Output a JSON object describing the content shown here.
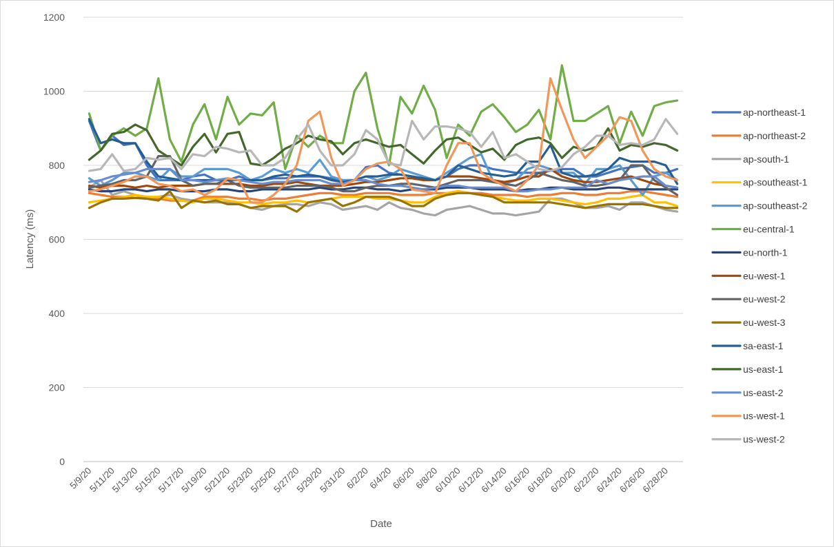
{
  "chart_data": {
    "type": "line",
    "title": "",
    "xlabel": "Date",
    "ylabel": "Latency (ms)",
    "ylim": [
      0,
      1200
    ],
    "y_ticks": [
      0,
      200,
      400,
      600,
      800,
      1000,
      1200
    ],
    "grid": "horizontal",
    "legend_position": "right",
    "x": [
      "5/9/20",
      "5/10/20",
      "5/11/20",
      "5/12/20",
      "5/13/20",
      "5/14/20",
      "5/15/20",
      "5/16/20",
      "5/17/20",
      "5/18/20",
      "5/19/20",
      "5/20/20",
      "5/21/20",
      "5/22/20",
      "5/23/20",
      "5/24/20",
      "5/25/20",
      "5/26/20",
      "5/27/20",
      "5/28/20",
      "5/29/20",
      "5/30/20",
      "5/31/20",
      "6/1/20",
      "6/2/20",
      "6/3/20",
      "6/4/20",
      "6/5/20",
      "6/6/20",
      "6/7/20",
      "6/8/20",
      "6/9/20",
      "6/10/20",
      "6/11/20",
      "6/12/20",
      "6/13/20",
      "6/14/20",
      "6/15/20",
      "6/16/20",
      "6/17/20",
      "6/18/20",
      "6/19/20",
      "6/20/20",
      "6/21/20",
      "6/22/20",
      "6/23/20",
      "6/24/20",
      "6/25/20",
      "6/26/20",
      "6/27/20",
      "6/28/20",
      "6/29/20"
    ],
    "x_tick_labels": [
      "5/9/20",
      "5/11/20",
      "5/13/20",
      "5/15/20",
      "5/17/20",
      "5/19/20",
      "5/21/20",
      "5/23/20",
      "5/25/20",
      "5/27/20",
      "5/29/20",
      "5/31/20",
      "6/2/20",
      "6/4/20",
      "6/6/20",
      "6/8/20",
      "6/10/20",
      "6/12/20",
      "6/14/20",
      "6/16/20",
      "6/18/20",
      "6/20/20",
      "6/22/20",
      "6/24/20",
      "6/26/20",
      "6/28/20"
    ],
    "series": [
      {
        "name": "ap-northeast-1",
        "color": "#4472C4",
        "values": [
          920,
          840,
          880,
          855,
          860,
          800,
          760,
          760,
          760,
          770,
          775,
          760,
          760,
          770,
          760,
          760,
          765,
          765,
          770,
          770,
          770,
          765,
          760,
          760,
          795,
          800,
          780,
          775,
          770,
          765,
          760,
          770,
          790,
          800,
          800,
          790,
          785,
          780,
          780,
          780,
          785,
          790,
          790,
          770,
          770,
          780,
          790,
          795,
          800,
          780,
          780,
          790
        ]
      },
      {
        "name": "ap-northeast-2",
        "color": "#ED7D31",
        "values": [
          725,
          720,
          715,
          715,
          712,
          710,
          710,
          705,
          705,
          705,
          715,
          715,
          715,
          710,
          710,
          705,
          710,
          710,
          715,
          720,
          725,
          725,
          720,
          720,
          725,
          725,
          725,
          720,
          720,
          720,
          725,
          725,
          730,
          725,
          725,
          720,
          720,
          720,
          715,
          720,
          720,
          725,
          725,
          720,
          720,
          725,
          725,
          730,
          730,
          725,
          720,
          715
        ]
      },
      {
        "name": "ap-south-1",
        "color": "#A5A5A5",
        "values": [
          740,
          760,
          720,
          730,
          720,
          710,
          715,
          720,
          710,
          705,
          700,
          700,
          700,
          695,
          685,
          680,
          690,
          695,
          695,
          690,
          700,
          695,
          680,
          685,
          690,
          680,
          700,
          685,
          680,
          670,
          665,
          680,
          685,
          690,
          680,
          670,
          670,
          665,
          670,
          675,
          710,
          710,
          700,
          685,
          685,
          690,
          680,
          700,
          700,
          690,
          680,
          675
        ]
      },
      {
        "name": "ap-southeast-1",
        "color": "#FFC000",
        "values": [
          700,
          705,
          710,
          715,
          720,
          715,
          715,
          710,
          705,
          700,
          710,
          710,
          705,
          700,
          700,
          695,
          700,
          700,
          705,
          700,
          705,
          710,
          715,
          715,
          715,
          710,
          710,
          705,
          700,
          700,
          715,
          725,
          730,
          725,
          720,
          715,
          710,
          705,
          705,
          710,
          710,
          705,
          700,
          695,
          700,
          710,
          710,
          715,
          720,
          700,
          700,
          690
        ]
      },
      {
        "name": "ap-southeast-2",
        "color": "#5B9BD5",
        "values": [
          765,
          745,
          760,
          780,
          780,
          770,
          760,
          790,
          770,
          770,
          790,
          790,
          790,
          780,
          760,
          770,
          790,
          780,
          790,
          780,
          815,
          770,
          760,
          760,
          770,
          760,
          770,
          790,
          780,
          770,
          760,
          780,
          800,
          820,
          830,
          760,
          750,
          760,
          790,
          800,
          790,
          780,
          780,
          750,
          790,
          790,
          800,
          760,
          720,
          770,
          780,
          760
        ]
      },
      {
        "name": "eu-central-1",
        "color": "#70AD47",
        "values": [
          940,
          840,
          880,
          900,
          880,
          900,
          1035,
          870,
          810,
          910,
          965,
          870,
          985,
          910,
          940,
          935,
          970,
          790,
          880,
          850,
          880,
          860,
          860,
          1000,
          1050,
          900,
          800,
          985,
          940,
          1015,
          950,
          820,
          910,
          880,
          945,
          965,
          930,
          890,
          910,
          950,
          870,
          1070,
          920,
          920,
          940,
          960,
          860,
          945,
          880,
          960,
          970,
          975
        ]
      },
      {
        "name": "eu-north-1",
        "color": "#264478",
        "values": [
          735,
          730,
          730,
          735,
          735,
          730,
          735,
          735,
          730,
          730,
          730,
          735,
          735,
          730,
          730,
          735,
          735,
          735,
          735,
          735,
          740,
          735,
          735,
          740,
          740,
          735,
          735,
          730,
          735,
          735,
          735,
          740,
          740,
          740,
          735,
          735,
          735,
          730,
          735,
          735,
          740,
          740,
          735,
          735,
          735,
          740,
          740,
          735,
          735,
          735,
          735,
          735
        ]
      },
      {
        "name": "eu-west-1",
        "color": "#9E480E",
        "values": [
          745,
          740,
          745,
          745,
          740,
          745,
          740,
          745,
          745,
          745,
          750,
          750,
          750,
          750,
          745,
          745,
          750,
          750,
          755,
          750,
          745,
          745,
          745,
          750,
          755,
          755,
          760,
          765,
          765,
          760,
          760,
          770,
          770,
          770,
          765,
          760,
          755,
          760,
          770,
          770,
          790,
          770,
          760,
          755,
          755,
          760,
          765,
          770,
          760,
          750,
          745,
          740
        ]
      },
      {
        "name": "eu-west-2",
        "color": "#636363",
        "values": [
          740,
          745,
          750,
          760,
          760,
          770,
          825,
          825,
          760,
          745,
          750,
          750,
          760,
          745,
          740,
          740,
          740,
          740,
          745,
          745,
          745,
          740,
          730,
          730,
          740,
          745,
          745,
          750,
          750,
          745,
          740,
          750,
          760,
          760,
          760,
          755,
          750,
          745,
          760,
          780,
          770,
          760,
          755,
          745,
          745,
          750,
          760,
          800,
          800,
          760,
          740,
          720
        ]
      },
      {
        "name": "eu-west-3",
        "color": "#997300",
        "values": [
          685,
          700,
          710,
          710,
          712,
          710,
          705,
          730,
          685,
          705,
          700,
          705,
          695,
          695,
          685,
          690,
          690,
          690,
          675,
          700,
          705,
          710,
          690,
          700,
          715,
          715,
          715,
          705,
          690,
          690,
          710,
          720,
          725,
          725,
          720,
          715,
          700,
          700,
          700,
          700,
          700,
          695,
          690,
          685,
          690,
          695,
          695,
          695,
          695,
          690,
          685,
          685
        ]
      },
      {
        "name": "sa-east-1",
        "color": "#255E91",
        "values": [
          925,
          860,
          870,
          860,
          860,
          810,
          770,
          765,
          760,
          760,
          760,
          760,
          760,
          760,
          760,
          760,
          770,
          775,
          770,
          775,
          770,
          760,
          755,
          760,
          770,
          770,
          775,
          775,
          770,
          765,
          760,
          770,
          800,
          790,
          780,
          775,
          770,
          775,
          810,
          810,
          855,
          780,
          770,
          770,
          775,
          790,
          820,
          810,
          810,
          810,
          800,
          750
        ]
      },
      {
        "name": "us-east-1",
        "color": "#43682B",
        "values": [
          815,
          840,
          885,
          890,
          910,
          895,
          840,
          820,
          800,
          850,
          885,
          835,
          885,
          890,
          805,
          800,
          820,
          845,
          860,
          880,
          870,
          865,
          830,
          860,
          870,
          860,
          850,
          855,
          830,
          805,
          840,
          870,
          875,
          855,
          835,
          845,
          815,
          855,
          870,
          875,
          860,
          820,
          850,
          840,
          850,
          900,
          840,
          855,
          850,
          860,
          855,
          840
        ]
      },
      {
        "name": "us-east-2",
        "color": "#698ED0",
        "values": [
          755,
          760,
          770,
          775,
          780,
          790,
          790,
          790,
          760,
          760,
          755,
          760,
          765,
          760,
          755,
          750,
          755,
          755,
          760,
          760,
          760,
          750,
          750,
          760,
          760,
          750,
          745,
          745,
          740,
          735,
          740,
          745,
          745,
          740,
          740,
          740,
          740,
          730,
          730,
          735,
          735,
          740,
          740,
          740,
          760,
          750,
          760,
          765,
          770,
          770,
          745,
          740
        ]
      },
      {
        "name": "us-west-1",
        "color": "#F1975A",
        "values": [
          730,
          735,
          745,
          755,
          770,
          770,
          750,
          745,
          730,
          735,
          720,
          735,
          765,
          760,
          700,
          700,
          720,
          750,
          800,
          920,
          945,
          820,
          745,
          760,
          790,
          805,
          810,
          790,
          735,
          730,
          725,
          800,
          860,
          860,
          780,
          760,
          745,
          730,
          760,
          800,
          1035,
          950,
          870,
          820,
          850,
          880,
          930,
          920,
          840,
          790,
          770,
          760
        ]
      },
      {
        "name": "us-west-2",
        "color": "#B7B7B7",
        "values": [
          785,
          790,
          830,
          785,
          790,
          820,
          815,
          820,
          790,
          830,
          825,
          850,
          845,
          835,
          840,
          800,
          800,
          820,
          870,
          910,
          840,
          800,
          800,
          830,
          895,
          870,
          805,
          800,
          920,
          870,
          905,
          905,
          900,
          890,
          850,
          890,
          820,
          830,
          810,
          790,
          785,
          795,
          830,
          850,
          880,
          880,
          855,
          860,
          855,
          870,
          925,
          885
        ]
      }
    ]
  }
}
